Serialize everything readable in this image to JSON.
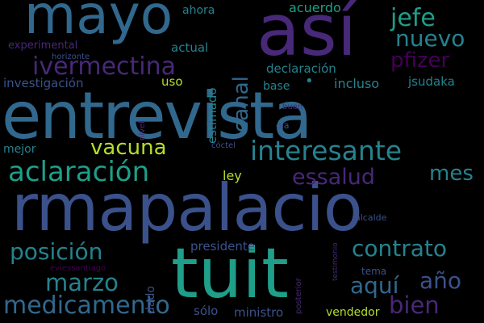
{
  "palette": {
    "background": "#000000",
    "navy": "#3b518b",
    "purple": "#482878",
    "deep_purple": "#440154",
    "blue": "#31688e",
    "teal": "#26828e",
    "aqua": "#1f9e89",
    "green": "#35b779",
    "lime": "#b5de2b"
  },
  "words": [
    {
      "text": "entrevista"
    },
    {
      "text": "rmapalacio"
    },
    {
      "text": "tuit"
    },
    {
      "text": "así"
    },
    {
      "text": "mayo"
    },
    {
      "text": "interesante"
    },
    {
      "text": "aclaración"
    },
    {
      "text": "ivermectina"
    },
    {
      "text": "nuevo"
    },
    {
      "text": "jefe"
    },
    {
      "text": "pfizer"
    },
    {
      "text": "canal"
    },
    {
      "text": "vacuna"
    },
    {
      "text": "essalud"
    },
    {
      "text": "mes"
    },
    {
      "text": "posición"
    },
    {
      "text": "contrato"
    },
    {
      "text": "marzo"
    },
    {
      "text": "aquí"
    },
    {
      "text": "año"
    },
    {
      "text": "medicamento"
    },
    {
      "text": "bien"
    },
    {
      "text": "ahora"
    },
    {
      "text": "acuerdo"
    },
    {
      "text": "experimental"
    },
    {
      "text": "horizonte"
    },
    {
      "text": "actual"
    },
    {
      "text": "estimado"
    },
    {
      "text": "declaración"
    },
    {
      "text": "investigación"
    },
    {
      "text": "uso"
    },
    {
      "text": "base"
    },
    {
      "text": "incluso"
    },
    {
      "text": "jsudaka"
    },
    {
      "text": "nivel"
    },
    {
      "text": "buen"
    },
    {
      "text": "ola"
    },
    {
      "text": "cóctel"
    },
    {
      "text": "mejor"
    },
    {
      "text": "ley"
    },
    {
      "text": "testimonio"
    },
    {
      "text": "alcalde"
    },
    {
      "text": "presidente"
    },
    {
      "text": "eviessantiago"
    },
    {
      "text": "posterior"
    },
    {
      "text": "tema"
    },
    {
      "text": "dado"
    },
    {
      "text": "vendedor"
    },
    {
      "text": "sólo"
    },
    {
      "text": "ministro"
    }
  ],
  "dot": {
    "char": "•"
  }
}
